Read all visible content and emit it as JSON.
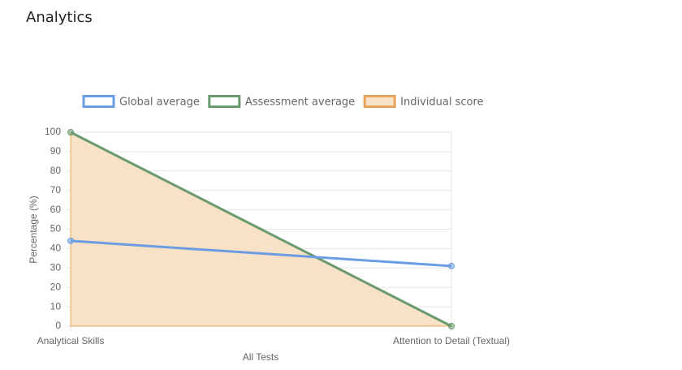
{
  "header": {
    "title": "Analytics"
  },
  "chart_data": {
    "type": "line",
    "categories": [
      "Analytical Skills",
      "Attention to Detail (Textual)"
    ],
    "series": [
      {
        "name": "Global average",
        "color": "#6a9de3",
        "values": [
          44,
          31
        ]
      },
      {
        "name": "Assessment average",
        "color": "#6a9a6e",
        "values": [
          100,
          0
        ]
      },
      {
        "name": "Individual score",
        "color": "#e8a45a",
        "fill_color": "#f7e1c7",
        "area": true,
        "values": [
          100,
          0
        ]
      }
    ],
    "ylim": [
      0,
      100
    ],
    "yticks": [
      0,
      10,
      20,
      30,
      40,
      50,
      60,
      70,
      80,
      90,
      100
    ],
    "ylabel": "Percentage (%)",
    "xlabel": "All Tests",
    "grid": true,
    "legend": "top"
  }
}
